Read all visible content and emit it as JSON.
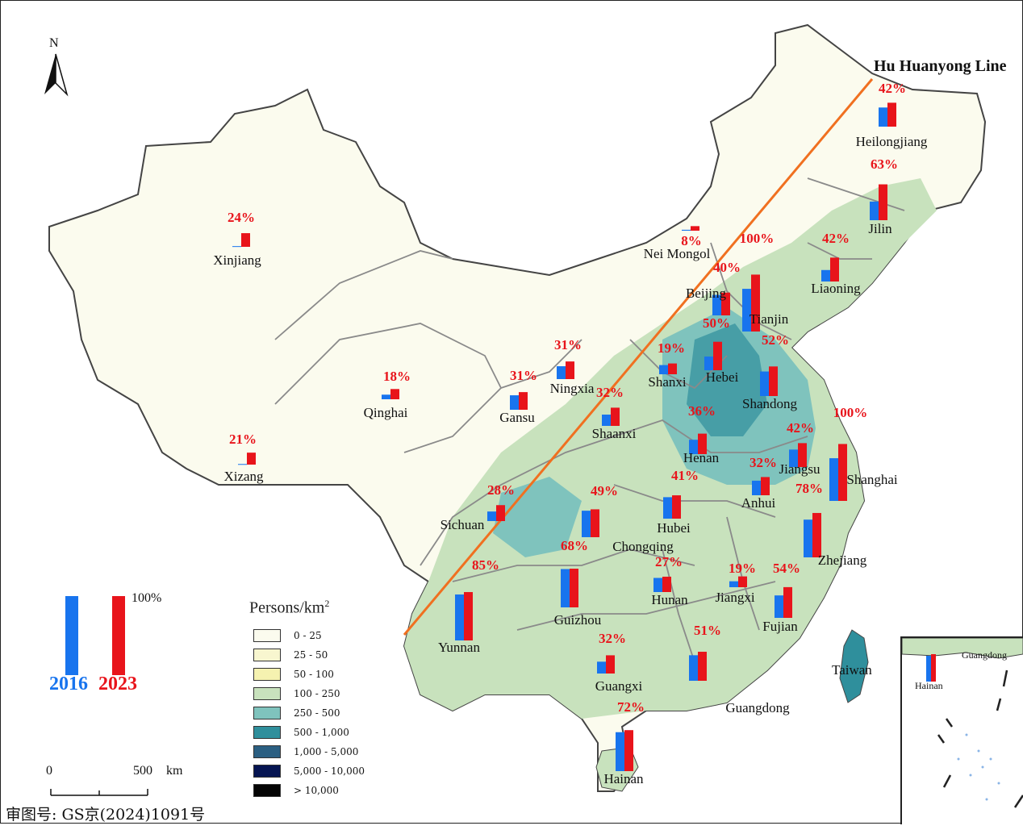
{
  "map": {
    "north_label": "N",
    "hu_line_label": "Hu Huanyong Line",
    "taiwan_label": "Taiwan",
    "approval_number": "审图号: GS京(2024)1091号",
    "scale": {
      "zero": "0",
      "max": "500",
      "unit": "km"
    },
    "colors": {
      "year_2016": "#1874ee",
      "year_2023": "#e8141b",
      "hu_line": "#f07020",
      "border": "#8a8a8a",
      "outline": "#444444"
    }
  },
  "legend": {
    "title": "Persons/km",
    "title_sup": "2",
    "classes": [
      {
        "label": "0 - 25",
        "color": "#fbfbee"
      },
      {
        "label": "25 - 50",
        "color": "#f8f6cf"
      },
      {
        "label": "50 - 100",
        "color": "#f5f2b0"
      },
      {
        "label": "100 - 250",
        "color": "#c8e2bd"
      },
      {
        "label": "250 - 500",
        "color": "#7fc3bd"
      },
      {
        "label": "500 - 1,000",
        "color": "#2f8f9c"
      },
      {
        "label": "1,000 - 5,000",
        "color": "#2b5f82"
      },
      {
        "label": "5,000 - 10,000",
        "color": "#061552"
      },
      {
        "label": "> 10,000",
        "color": "#050505"
      }
    ],
    "bar_legend": {
      "label_2016": "2016",
      "label_2023": "2023",
      "label_100": "100%"
    }
  },
  "chart_data": {
    "type": "bar",
    "x": [
      "2016",
      "2023"
    ],
    "unit": "%",
    "series": [
      {
        "name": "Heilongjiang",
        "values": [
          null,
          42
        ],
        "label": "42%"
      },
      {
        "name": "Jilin",
        "values": [
          null,
          63
        ],
        "label": "63%"
      },
      {
        "name": "Liaoning",
        "values": [
          null,
          42
        ],
        "label": "42%"
      },
      {
        "name": "Nei Mongol",
        "values": [
          null,
          8
        ],
        "label": "8%"
      },
      {
        "name": "Beijing",
        "values": [
          null,
          40
        ],
        "label": "40%"
      },
      {
        "name": "Tianjin",
        "values": [
          null,
          100
        ],
        "label": "100%"
      },
      {
        "name": "Hebei",
        "values": [
          null,
          50
        ],
        "label": "50%"
      },
      {
        "name": "Shandong",
        "values": [
          null,
          52
        ],
        "label": "52%"
      },
      {
        "name": "Shanxi",
        "values": [
          null,
          19
        ],
        "label": "19%"
      },
      {
        "name": "Ningxia",
        "values": [
          null,
          31
        ],
        "label": "31%"
      },
      {
        "name": "Gansu",
        "values": [
          null,
          31
        ],
        "label": "31%"
      },
      {
        "name": "Shaanxi",
        "values": [
          null,
          32
        ],
        "label": "32%"
      },
      {
        "name": "Henan",
        "values": [
          null,
          36
        ],
        "label": "36%"
      },
      {
        "name": "Jiangsu",
        "values": [
          null,
          42
        ],
        "label": "42%"
      },
      {
        "name": "Shanghai",
        "values": [
          null,
          100
        ],
        "label": "100%"
      },
      {
        "name": "Anhui",
        "values": [
          null,
          32
        ],
        "label": "32%"
      },
      {
        "name": "Zhejiang",
        "values": [
          null,
          78
        ],
        "label": "78%"
      },
      {
        "name": "Hubei",
        "values": [
          null,
          41
        ],
        "label": "41%"
      },
      {
        "name": "Chongqing",
        "values": [
          null,
          49
        ],
        "label": "49%"
      },
      {
        "name": "Sichuan",
        "values": [
          null,
          28
        ],
        "label": "28%"
      },
      {
        "name": "Guizhou",
        "values": [
          null,
          68
        ],
        "label": "68%"
      },
      {
        "name": "Hunan",
        "values": [
          null,
          27
        ],
        "label": "27%"
      },
      {
        "name": "Jiangxi",
        "values": [
          null,
          19
        ],
        "label": "19%"
      },
      {
        "name": "Fujian",
        "values": [
          null,
          54
        ],
        "label": "54%"
      },
      {
        "name": "Yunnan",
        "values": [
          null,
          85
        ],
        "label": "85%"
      },
      {
        "name": "Guangxi",
        "values": [
          null,
          32
        ],
        "label": "32%"
      },
      {
        "name": "Guangdong",
        "values": [
          null,
          51
        ],
        "label": "51%"
      },
      {
        "name": "Hainan",
        "values": [
          null,
          72
        ],
        "label": "72%"
      },
      {
        "name": "Xinjiang",
        "values": [
          null,
          24
        ],
        "label": "24%"
      },
      {
        "name": "Qinghai",
        "values": [
          null,
          18
        ],
        "label": "18%"
      },
      {
        "name": "Xizang",
        "values": [
          null,
          21
        ],
        "label": "21%"
      }
    ]
  },
  "inset": {
    "guangdong_label": "Guangdong",
    "hainan_label": "Hainan"
  }
}
